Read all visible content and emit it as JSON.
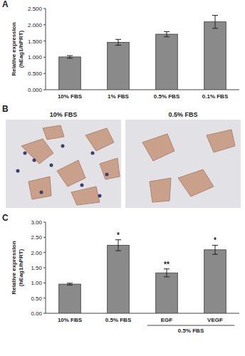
{
  "chart_data": [
    {
      "type": "bar",
      "title": "A",
      "categories": [
        "10% FBS",
        "1% FBS",
        "0.5% FBS",
        "0.1% FBS"
      ],
      "values": [
        1.01,
        1.46,
        1.71,
        2.09
      ],
      "error": [
        0.04,
        0.09,
        0.08,
        0.2
      ],
      "color": "#8a8a8a",
      "ylabel": [
        "Relative expression",
        "(hEag1/hPRT)"
      ],
      "ylim": [
        0,
        2.5
      ],
      "yticks": [
        {
          "value": 0,
          "label": "0.000"
        },
        {
          "value": 0.5,
          "label": "0.500"
        },
        {
          "value": 1,
          "label": "1.000"
        },
        {
          "value": 1.5,
          "label": "1.500"
        },
        {
          "value": 2,
          "label": "2.000"
        },
        {
          "value": 2.5,
          "label": "2.500"
        }
      ],
      "grid": false
    },
    {
      "type": "bar",
      "title": "C",
      "categories": [
        "10% FBS",
        "0.5% FBS",
        "EGF",
        "VEGF"
      ],
      "group_labels": [
        null,
        null,
        "0.5% FBS",
        "0.5% FBS"
      ],
      "values": [
        0.96,
        2.24,
        1.33,
        2.09
      ],
      "error": [
        0.03,
        0.18,
        0.13,
        0.15
      ],
      "annotations": [
        null,
        "*",
        "**",
        "*"
      ],
      "color": "#8a8a8a",
      "ylabel": [
        "Relative expression",
        "(hEag1/hPRT)"
      ],
      "ylim": [
        0,
        3
      ],
      "yticks": [
        {
          "value": 0,
          "label": "0.00"
        },
        {
          "value": 0.5,
          "label": "0.50"
        },
        {
          "value": 1,
          "label": "1.00"
        },
        {
          "value": 1.5,
          "label": "1.50"
        },
        {
          "value": 2,
          "label": "2.00"
        },
        {
          "value": 2.5,
          "label": "2.50"
        },
        {
          "value": 3,
          "label": "3.00"
        }
      ],
      "grid": false
    }
  ],
  "image_panel": {
    "title": "B",
    "captions": [
      "10% FBS",
      "0.5% FBS"
    ]
  }
}
